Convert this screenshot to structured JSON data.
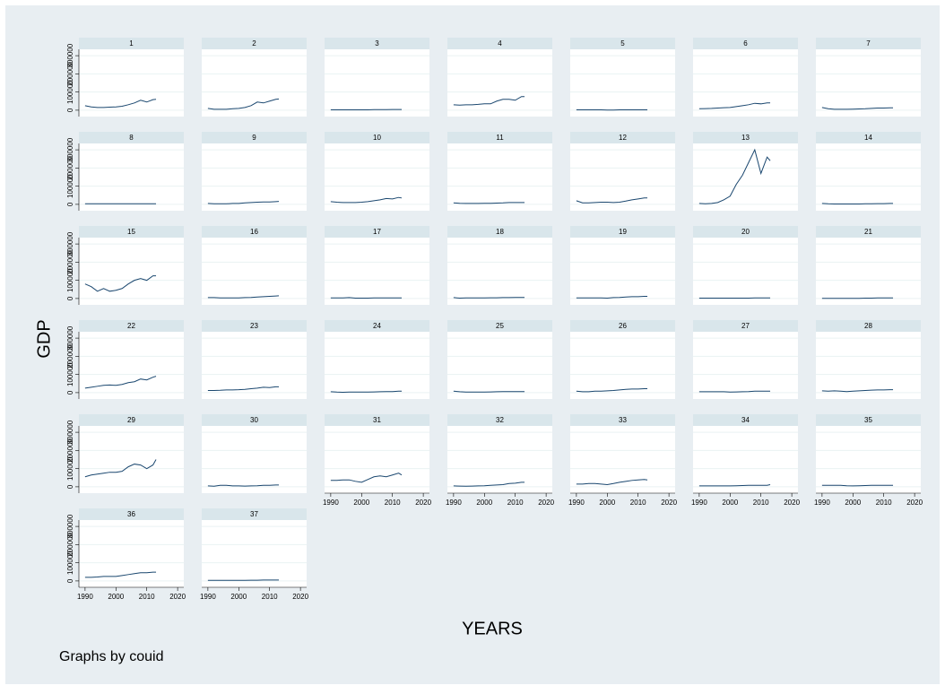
{
  "chart_data": {
    "type": "line",
    "y_label": "GDP",
    "x_label": "YEARS",
    "note": "Graphs by couid",
    "color": "#1a476f",
    "grid": true,
    "x": [
      1990,
      1992,
      1994,
      1996,
      1998,
      2000,
      2002,
      2004,
      2006,
      2008,
      2010,
      2012,
      2013
    ],
    "xlim": [
      1988,
      2022
    ],
    "ylim": [
      -35000,
      335000
    ],
    "xticks": [
      1990,
      2000,
      2010,
      2020
    ],
    "yticks": [
      0,
      100000,
      200000,
      300000
    ],
    "panels": [
      {
        "title": "1",
        "values": [
          25000,
          18000,
          15000,
          15000,
          17000,
          18000,
          22000,
          30000,
          40000,
          55000,
          45000,
          58000,
          60000
        ]
      },
      {
        "title": "2",
        "values": [
          10000,
          5000,
          5000,
          5000,
          8000,
          10000,
          15000,
          25000,
          45000,
          40000,
          50000,
          60000,
          62000
        ]
      },
      {
        "title": "3",
        "values": [
          2000,
          2000,
          2000,
          2000,
          2000,
          2000,
          2000,
          3000,
          3000,
          3000,
          4000,
          4000,
          4000
        ]
      },
      {
        "title": "4",
        "values": [
          30000,
          28000,
          30000,
          30000,
          32000,
          35000,
          35000,
          50000,
          60000,
          60000,
          55000,
          75000,
          75000
        ]
      },
      {
        "title": "5",
        "values": [
          2000,
          2000,
          2000,
          2000,
          2000,
          1000,
          1000,
          2000,
          2000,
          2000,
          2000,
          2000,
          2000
        ]
      },
      {
        "title": "6",
        "values": [
          8000,
          9000,
          10000,
          12000,
          14000,
          15000,
          20000,
          25000,
          30000,
          38000,
          35000,
          40000,
          40000
        ]
      },
      {
        "title": "7",
        "values": [
          15000,
          8000,
          5000,
          5000,
          5000,
          6000,
          7000,
          8000,
          10000,
          12000,
          12000,
          13000,
          13000
        ]
      },
      {
        "title": "8",
        "values": [
          3000,
          3000,
          3000,
          3000,
          3000,
          3000,
          3000,
          3000,
          3000,
          3000,
          3000,
          3000,
          3000
        ]
      },
      {
        "title": "9",
        "values": [
          5000,
          3000,
          3000,
          3000,
          5000,
          5000,
          8000,
          10000,
          12000,
          13000,
          13000,
          15000,
          16000
        ]
      },
      {
        "title": "10",
        "values": [
          15000,
          12000,
          10000,
          10000,
          10000,
          12000,
          15000,
          20000,
          25000,
          32000,
          30000,
          38000,
          35000
        ]
      },
      {
        "title": "11",
        "values": [
          8000,
          6000,
          5000,
          5000,
          5000,
          6000,
          6000,
          7000,
          8000,
          10000,
          10000,
          10000,
          10000
        ]
      },
      {
        "title": "12",
        "values": [
          20000,
          8000,
          8000,
          10000,
          12000,
          12000,
          10000,
          12000,
          18000,
          25000,
          30000,
          35000,
          35000
        ]
      },
      {
        "title": "13",
        "values": [
          5000,
          3000,
          5000,
          10000,
          25000,
          45000,
          110000,
          160000,
          230000,
          300000,
          170000,
          260000,
          240000
        ]
      },
      {
        "title": "14",
        "values": [
          5000,
          3000,
          2000,
          2000,
          2000,
          2000,
          2000,
          3000,
          3000,
          4000,
          4000,
          5000,
          5000
        ]
      },
      {
        "title": "15",
        "values": [
          80000,
          65000,
          40000,
          55000,
          40000,
          45000,
          55000,
          80000,
          100000,
          110000,
          100000,
          125000,
          125000
        ]
      },
      {
        "title": "16",
        "values": [
          5000,
          5000,
          3000,
          3000,
          3000,
          3000,
          5000,
          6000,
          8000,
          10000,
          12000,
          14000,
          15000
        ]
      },
      {
        "title": "17",
        "values": [
          3000,
          3000,
          3000,
          5000,
          2000,
          2000,
          2000,
          3000,
          3000,
          3000,
          3000,
          3000,
          3000
        ]
      },
      {
        "title": "18",
        "values": [
          5000,
          2000,
          3000,
          3000,
          3000,
          3000,
          4000,
          4000,
          5000,
          5000,
          6000,
          6000,
          6000
        ]
      },
      {
        "title": "19",
        "values": [
          3000,
          3000,
          3000,
          3000,
          3000,
          2000,
          5000,
          6000,
          8000,
          10000,
          10000,
          12000,
          12000
        ]
      },
      {
        "title": "20",
        "values": [
          2000,
          2000,
          2000,
          2000,
          2000,
          2000,
          2000,
          2000,
          2000,
          3000,
          3000,
          3000,
          3000
        ]
      },
      {
        "title": "21",
        "values": [
          1000,
          1000,
          1000,
          1000,
          1000,
          1000,
          1000,
          2000,
          2000,
          3000,
          3000,
          3000,
          3000
        ]
      },
      {
        "title": "22",
        "values": [
          25000,
          30000,
          35000,
          40000,
          42000,
          40000,
          45000,
          55000,
          60000,
          75000,
          70000,
          85000,
          90000
        ]
      },
      {
        "title": "23",
        "values": [
          12000,
          12000,
          13000,
          15000,
          15000,
          16000,
          18000,
          22000,
          25000,
          30000,
          28000,
          32000,
          32000
        ]
      },
      {
        "title": "24",
        "values": [
          5000,
          3000,
          2000,
          3000,
          3000,
          3000,
          3000,
          4000,
          5000,
          6000,
          6000,
          8000,
          8000
        ]
      },
      {
        "title": "25",
        "values": [
          8000,
          5000,
          3000,
          3000,
          3000,
          3000,
          4000,
          5000,
          6000,
          6000,
          6000,
          6000,
          6000
        ]
      },
      {
        "title": "26",
        "values": [
          8000,
          5000,
          5000,
          8000,
          8000,
          10000,
          12000,
          15000,
          18000,
          20000,
          20000,
          22000,
          22000
        ]
      },
      {
        "title": "27",
        "values": [
          5000,
          5000,
          5000,
          5000,
          5000,
          3000,
          4000,
          5000,
          6000,
          8000,
          8000,
          8000,
          8000
        ]
      },
      {
        "title": "28",
        "values": [
          10000,
          8000,
          10000,
          8000,
          6000,
          8000,
          10000,
          12000,
          14000,
          15000,
          15000,
          16000,
          16000
        ]
      },
      {
        "title": "29",
        "values": [
          55000,
          65000,
          70000,
          75000,
          80000,
          80000,
          85000,
          110000,
          125000,
          120000,
          100000,
          120000,
          150000
        ]
      },
      {
        "title": "30",
        "values": [
          5000,
          3000,
          8000,
          8000,
          5000,
          5000,
          4000,
          5000,
          6000,
          8000,
          8000,
          10000,
          10000
        ]
      },
      {
        "title": "31",
        "values": [
          35000,
          35000,
          38000,
          38000,
          30000,
          25000,
          40000,
          55000,
          60000,
          55000,
          65000,
          75000,
          65000
        ]
      },
      {
        "title": "32",
        "values": [
          5000,
          4000,
          3000,
          4000,
          5000,
          6000,
          8000,
          10000,
          12000,
          18000,
          20000,
          25000,
          25000
        ]
      },
      {
        "title": "33",
        "values": [
          15000,
          15000,
          18000,
          18000,
          15000,
          12000,
          18000,
          25000,
          30000,
          35000,
          38000,
          40000,
          38000
        ]
      },
      {
        "title": "34",
        "values": [
          5000,
          5000,
          5000,
          5000,
          5000,
          5000,
          6000,
          7000,
          8000,
          8000,
          8000,
          8000,
          12000
        ]
      },
      {
        "title": "35",
        "values": [
          8000,
          8000,
          8000,
          8000,
          6000,
          5000,
          6000,
          7000,
          8000,
          8000,
          8000,
          8000,
          8000
        ]
      },
      {
        "title": "36",
        "values": [
          20000,
          20000,
          22000,
          25000,
          25000,
          25000,
          30000,
          35000,
          40000,
          45000,
          45000,
          48000,
          48000
        ]
      },
      {
        "title": "37",
        "values": [
          3000,
          3000,
          3000,
          3000,
          3000,
          3000,
          3000,
          4000,
          4000,
          5000,
          5000,
          5000,
          5000
        ]
      }
    ]
  }
}
